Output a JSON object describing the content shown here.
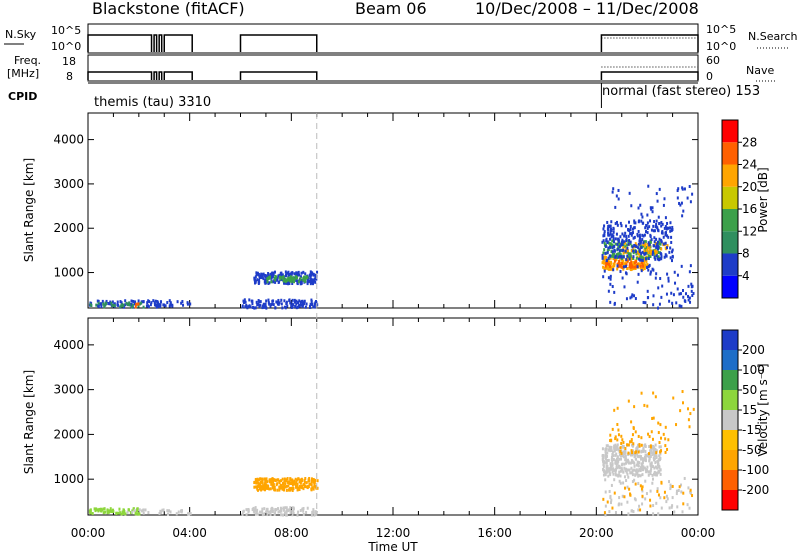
{
  "header": {
    "title": "Blackstone (fitACF)",
    "beam": "Beam 06",
    "date_range": "10/Dec/2008 – 11/Dec/2008"
  },
  "params": {
    "nsky_label": "N.Sky",
    "nsky_ticks": [
      "10^5",
      "10^0"
    ],
    "nsearch_label": "N.Search",
    "nsearch_ticks": [
      "10^5",
      "10^0"
    ],
    "freq_label": "Freq.",
    "freq_unit": "[MHz]",
    "freq_ticks": [
      "18",
      "8"
    ],
    "nave_label": "Nave",
    "nave_ticks": [
      "60",
      "0"
    ],
    "cpid_label": "CPID",
    "cpid_modes": [
      {
        "name": "themis (tau) 3310",
        "start": 0,
        "end": 20.2
      },
      {
        "name": "normal (fast stereo) 153",
        "start": 20.2,
        "end": 24
      }
    ],
    "nsky_segments": [
      [
        0,
        2.5
      ],
      [
        2.6,
        2.7
      ],
      [
        2.8,
        2.9
      ],
      [
        3.0,
        4.1
      ],
      [
        6.0,
        9.0
      ],
      [
        20.2,
        24.0
      ]
    ],
    "dashed_time": 9.0
  },
  "chart_data": [
    {
      "type": "heatmap",
      "name": "power",
      "ylabel": "Slant Range [km]",
      "ylim": [
        200,
        4600
      ],
      "yticks": [
        1000,
        2000,
        3000,
        4000
      ],
      "xlim": [
        0,
        24
      ],
      "colorbar": {
        "label": "Power [dB]",
        "ticks": [
          "4",
          "8",
          "12",
          "16",
          "20",
          "24",
          "28"
        ],
        "colors": [
          "#0000ff",
          "#1e3cc8",
          "#2f8f5f",
          "#3ca04a",
          "#c8c800",
          "#ffa500",
          "#ff6000",
          "#ff0000"
        ]
      },
      "clusters": [
        {
          "t0": 0.0,
          "t1": 4.0,
          "r0": 250,
          "r1": 400,
          "color": "#1e3cc8",
          "n": 90
        },
        {
          "t0": 0.0,
          "t1": 2.2,
          "r0": 250,
          "r1": 350,
          "color": "#2f8f5f",
          "n": 30
        },
        {
          "t0": 1.8,
          "t1": 2.0,
          "r0": 250,
          "r1": 330,
          "color": "#ff6000",
          "n": 4
        },
        {
          "t0": 6.0,
          "t1": 9.0,
          "r0": 230,
          "r1": 420,
          "color": "#1e3cc8",
          "n": 120
        },
        {
          "t0": 6.5,
          "t1": 9.0,
          "r0": 780,
          "r1": 1050,
          "color": "#1e3cc8",
          "n": 200
        },
        {
          "t0": 7.0,
          "t1": 8.6,
          "r0": 820,
          "r1": 950,
          "color": "#3ca04a",
          "n": 60
        },
        {
          "t0": 20.2,
          "t1": 22.0,
          "r0": 1100,
          "r1": 1400,
          "color": "#ffa500",
          "n": 150
        },
        {
          "t0": 20.2,
          "t1": 21.8,
          "r0": 1150,
          "r1": 1300,
          "color": "#ff6000",
          "n": 40
        },
        {
          "t0": 20.2,
          "t1": 22.5,
          "r0": 1350,
          "r1": 1750,
          "color": "#3ca04a",
          "n": 160
        },
        {
          "t0": 21.0,
          "t1": 22.8,
          "r0": 1450,
          "r1": 1700,
          "color": "#ffa500",
          "n": 50
        },
        {
          "t0": 20.2,
          "t1": 23.0,
          "r0": 1300,
          "r1": 2200,
          "color": "#1e3cc8",
          "n": 260
        },
        {
          "t0": 20.2,
          "t1": 23.8,
          "r0": 230,
          "r1": 1200,
          "color": "#1e3cc8",
          "n": 90
        },
        {
          "t0": 20.5,
          "t1": 23.8,
          "r0": 2200,
          "r1": 3000,
          "color": "#1e3cc8",
          "n": 40
        }
      ]
    },
    {
      "type": "heatmap",
      "name": "velocity",
      "ylabel": "Slant Range [km]",
      "ylim": [
        200,
        4600
      ],
      "yticks": [
        1000,
        2000,
        3000,
        4000
      ],
      "xlim": [
        0,
        24
      ],
      "xticks": [
        "00:00",
        "04:00",
        "08:00",
        "12:00",
        "16:00",
        "20:00",
        "00:00"
      ],
      "xlabel": "Time UT",
      "colorbar": {
        "label": "Velocity [m s⁻¹]",
        "ticks": [
          "-200",
          "-100",
          "-50",
          "-15",
          "15",
          "50",
          "100",
          "200"
        ],
        "colors": [
          "#ff0000",
          "#ff6000",
          "#ffa500",
          "#ffc000",
          "#c8c8c8",
          "#8dd63c",
          "#3ca04a",
          "#1e6ec8",
          "#1e3cc8"
        ]
      },
      "clusters": [
        {
          "t0": 0.0,
          "t1": 2.0,
          "r0": 250,
          "r1": 380,
          "color": "#8dd63c",
          "n": 70
        },
        {
          "t0": 1.5,
          "t1": 4.0,
          "r0": 250,
          "r1": 350,
          "color": "#c8c8c8",
          "n": 30
        },
        {
          "t0": 6.0,
          "t1": 9.0,
          "r0": 230,
          "r1": 400,
          "color": "#c8c8c8",
          "n": 100
        },
        {
          "t0": 6.5,
          "t1": 9.0,
          "r0": 780,
          "r1": 1050,
          "color": "#ffa500",
          "n": 230
        },
        {
          "t0": 20.2,
          "t1": 22.5,
          "r0": 1100,
          "r1": 1800,
          "color": "#c8c8c8",
          "n": 380
        },
        {
          "t0": 20.5,
          "t1": 22.8,
          "r0": 1600,
          "r1": 2200,
          "color": "#ffa500",
          "n": 60
        },
        {
          "t0": 20.2,
          "t1": 23.8,
          "r0": 230,
          "r1": 1100,
          "color": "#c8c8c8",
          "n": 80
        },
        {
          "t0": 20.2,
          "t1": 23.8,
          "r0": 230,
          "r1": 1000,
          "color": "#ffa500",
          "n": 30
        },
        {
          "t0": 20.5,
          "t1": 23.8,
          "r0": 2200,
          "r1": 3000,
          "color": "#ffa500",
          "n": 25
        }
      ]
    }
  ]
}
